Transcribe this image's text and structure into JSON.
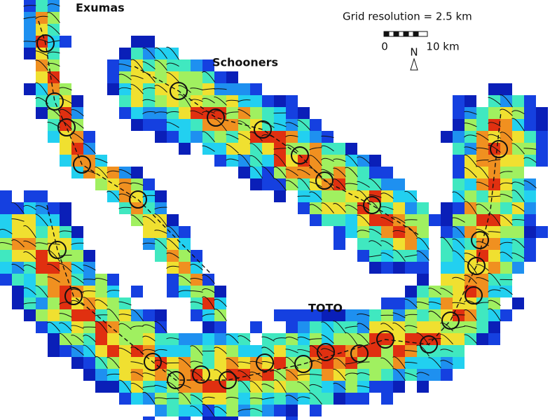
{
  "labels": {
    "exumas": "Exumas",
    "schooners": "Schooners",
    "toto": "TOTO"
  },
  "scale": {
    "title": "Grid resolution = 2.5 km",
    "start": "0",
    "end": "10 km",
    "north": "N"
  }
}
